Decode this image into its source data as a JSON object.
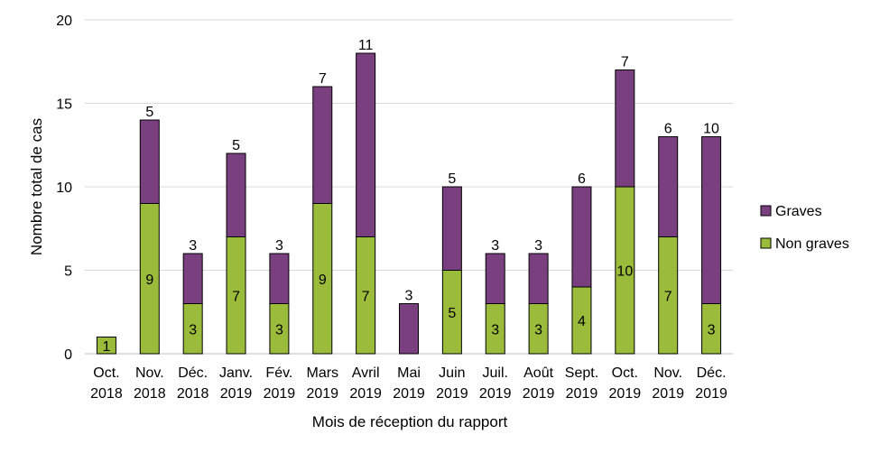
{
  "chart_data": {
    "type": "bar",
    "stacked": true,
    "xlabel": "Mois de réception du rapport",
    "ylabel": "Nombre total de cas",
    "ylim": [
      0,
      20
    ],
    "yticks": [
      0,
      5,
      10,
      15,
      20
    ],
    "grid": true,
    "legend_position": "right",
    "categories": [
      [
        "Oct.",
        "2018"
      ],
      [
        "Nov.",
        "2018"
      ],
      [
        "Déc.",
        "2018"
      ],
      [
        "Janv.",
        "2019"
      ],
      [
        "Fév.",
        "2019"
      ],
      [
        "Mars",
        "2019"
      ],
      [
        "Avril",
        "2019"
      ],
      [
        "Mai",
        "2019"
      ],
      [
        "Juin",
        "2019"
      ],
      [
        "Juil.",
        "2019"
      ],
      [
        "Août",
        "2019"
      ],
      [
        "Sept.",
        "2019"
      ],
      [
        "Oct.",
        "2019"
      ],
      [
        "Nov.",
        "2019"
      ],
      [
        "Déc.",
        "2019"
      ]
    ],
    "series": [
      {
        "name": "Non graves",
        "color": "#9bbb3b",
        "values": [
          1,
          9,
          3,
          7,
          3,
          9,
          7,
          0,
          5,
          3,
          3,
          4,
          10,
          7,
          3
        ],
        "label_position": "inside"
      },
      {
        "name": "Graves",
        "color": "#7a3f7e",
        "values": [
          0,
          5,
          3,
          5,
          3,
          7,
          11,
          3,
          5,
          3,
          3,
          6,
          7,
          6,
          10
        ],
        "label_position": "above"
      }
    ],
    "legend_order": [
      "Graves",
      "Non graves"
    ]
  }
}
